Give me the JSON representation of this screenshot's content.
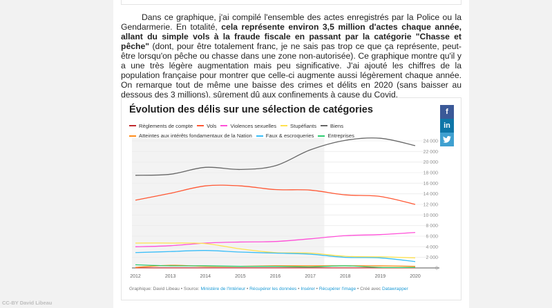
{
  "paragraph": {
    "p1": "Dans ce graphique, j'ai compilé l'ensemble des actes enregistrés par la Police ou la Gendarmerie. En totalité, ",
    "bold": "cela représente environ 3,5 million d'actes chaque année, allant du simple vols à la fraude fiscale en passant par la catégorie \"Chasse et pêche\"",
    "p2": " (dont, pour être totalement franc, je ne sais pas trop ce que ça représente, peut-être lorsqu'on pêche ou chasse dans une zone non-autorisée). Ce graphique montre qu'il y a une très légère augmentation mais peu significative. J'ai ajouté les chiffres de la population française pour montrer que celle-ci augmente aussi légèrement chaque année. On remarque tout de même une baisse des crimes et délits en 2020 (sans baisser au dessous des 3 millions), sûrement dû aux confinements à cause du Covid."
  },
  "social": {
    "facebook": "f",
    "linkedin": "in",
    "twitter": "twitter-icon",
    "colors": {
      "facebook": "#3b5998",
      "linkedin": "#0e76a8",
      "twitter": "#3fa0d0"
    }
  },
  "footer": {
    "prefix": "Graphique: David Libeau • Source: ",
    "source": "Ministère de l'Intérieur",
    "sep1": " • ",
    "data": "Récupérer les données",
    "sep2": " • ",
    "embed": "Insérer",
    "sep3": " • ",
    "image": "Récupérer l'image",
    "sep4": " • Créé avec ",
    "tool": "Datawrapper"
  },
  "credit": "CC-BY David Libeau",
  "chart_data": {
    "type": "line",
    "title": "Évolution des délis sur une sélection de catégories",
    "x": [
      2012,
      2013,
      2014,
      2015,
      2016,
      2017,
      2018,
      2019,
      2020
    ],
    "x_ticks": [
      "2012",
      "2013",
      "2014",
      "2015",
      "2016",
      "2017",
      "2018",
      "2019",
      "2020"
    ],
    "ylim": [
      0,
      24000
    ],
    "y_ticks": [
      0,
      2000,
      4000,
      6000,
      8000,
      10000,
      12000,
      14000,
      16000,
      18000,
      20000,
      22000,
      24000
    ],
    "y_tick_labels": [
      "0",
      "2 000",
      "4 000",
      "6 000",
      "8 000",
      "10 000",
      "12 000",
      "14 000",
      "16 000",
      "18 000",
      "20 000",
      "22 000",
      "24 000"
    ],
    "y_axis_position": "right",
    "grid": true,
    "highlight_range": [
      2012,
      2017.4
    ],
    "legend_placement": "top",
    "series": [
      {
        "name": "Règlements de compte",
        "color": "#c0282d",
        "values": [
          20,
          20,
          20,
          20,
          20,
          20,
          20,
          20,
          20
        ]
      },
      {
        "name": "Vols",
        "color": "#ff5733",
        "values": [
          12800,
          14100,
          15500,
          15500,
          14800,
          14700,
          13800,
          13500,
          12000
        ]
      },
      {
        "name": "Violences sexuelles",
        "color": "#ff4fd8",
        "values": [
          4000,
          4200,
          4700,
          4900,
          5000,
          5500,
          6100,
          6300,
          6700
        ]
      },
      {
        "name": "Stupéfiants",
        "color": "#ffe14d",
        "values": [
          4700,
          4700,
          4600,
          3600,
          2900,
          2800,
          2200,
          2100,
          1900
        ]
      },
      {
        "name": "Biens",
        "color": "#666666",
        "values": [
          17500,
          17700,
          19000,
          18600,
          19300,
          22300,
          24100,
          24500,
          23100
        ]
      },
      {
        "name": "Atteintes aux intérêts fondamentaux de la Nation",
        "color": "#ff8c1a",
        "values": [
          100,
          500,
          300,
          300,
          400,
          400,
          400,
          400,
          300
        ]
      },
      {
        "name": "Faux & escroqueries",
        "color": "#38bdf8",
        "values": [
          2900,
          3100,
          3300,
          3000,
          2800,
          2600,
          2000,
          1900,
          1200
        ]
      },
      {
        "name": "Entreprises",
        "color": "#2ecc71",
        "values": [
          600,
          400,
          400,
          300,
          300,
          200,
          400,
          100,
          100
        ]
      }
    ]
  }
}
